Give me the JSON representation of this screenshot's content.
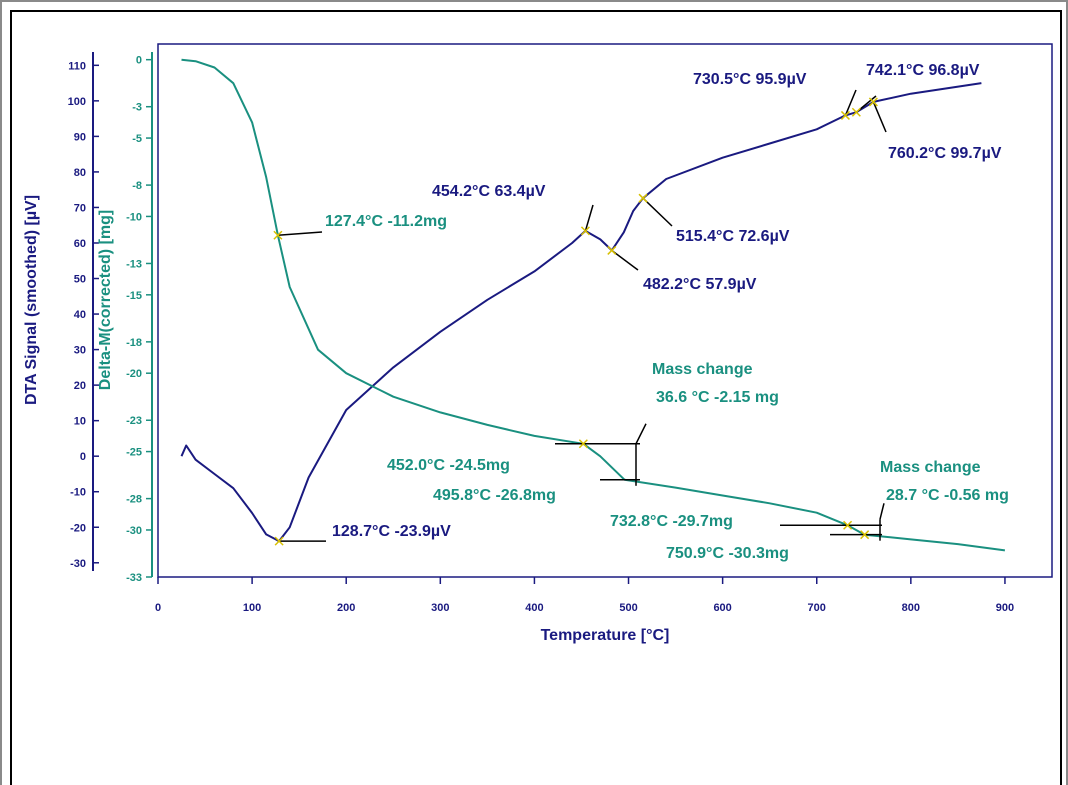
{
  "chart_data": {
    "type": "line",
    "title": "",
    "xlabel": "Temperature  [°C]",
    "ylabel_left": "DTA Signal (smoothed)  [µV]",
    "ylabel_right": "Delta-M(corrected)  [mg]",
    "x_ticks": [
      "0",
      "100",
      "200",
      "300",
      "400",
      "500",
      "600",
      "700",
      "800",
      "900"
    ],
    "y_ticks_dta": [
      "110",
      "100",
      "90",
      "80",
      "70",
      "60",
      "50",
      "40",
      "30",
      "20",
      "10",
      "0",
      "-10",
      "-20",
      "-30"
    ],
    "y_ticks_mass": [
      "0",
      "-3",
      "-5",
      "-8",
      "-10",
      "-13",
      "-15",
      "-18",
      "-20",
      "-23",
      "-25",
      "-28",
      "-30",
      "-33"
    ],
    "xlim": [
      0,
      950
    ],
    "ylim_dta": [
      -34,
      116
    ],
    "ylim_mass": [
      -33,
      1
    ],
    "colors": {
      "dta": "#1a1a80",
      "mass": "#1a9080"
    },
    "series": [
      {
        "name": "DTA Signal (smoothed)",
        "axis": "left",
        "x": [
          25,
          30,
          40,
          60,
          80,
          100,
          115,
          128.7,
          140,
          160,
          200,
          250,
          300,
          350,
          400,
          440,
          454.2,
          470,
          482.2,
          495,
          505,
          515.4,
          540,
          600,
          650,
          700,
          730.5,
          742.1,
          760.2,
          800,
          875
        ],
        "y": [
          0,
          3,
          -1,
          -5,
          -9,
          -16,
          -22,
          -23.9,
          -20,
          -6,
          13,
          25,
          35,
          44,
          52,
          60,
          63.4,
          61,
          57.9,
          63,
          69,
          72.6,
          78,
          84,
          88,
          92,
          95.9,
          96.8,
          99.7,
          102,
          105
        ]
      },
      {
        "name": "Delta-M(corrected)",
        "axis": "right",
        "x": [
          25,
          40,
          60,
          80,
          100,
          115,
          127.4,
          140,
          170,
          200,
          250,
          300,
          350,
          400,
          452,
          470,
          495.8,
          550,
          600,
          650,
          700,
          732.8,
          750.9,
          800,
          850,
          900
        ],
        "y": [
          0,
          -0.1,
          -0.5,
          -1.5,
          -4,
          -7.5,
          -11.2,
          -14.5,
          -18.5,
          -20,
          -21.5,
          -22.5,
          -23.3,
          -24,
          -24.5,
          -25.3,
          -26.8,
          -27.3,
          -27.8,
          -28.3,
          -28.9,
          -29.7,
          -30.3,
          -30.6,
          -30.9,
          -31.3
        ]
      }
    ],
    "annotations": [
      {
        "text": "127.4°C  -11.2mg",
        "series": "mass"
      },
      {
        "text": "454.2°C  63.4µV",
        "series": "dta"
      },
      {
        "text": "482.2°C  57.9µV",
        "series": "dta"
      },
      {
        "text": "515.4°C  72.6µV",
        "series": "dta"
      },
      {
        "text": "730.5°C  95.9µV",
        "series": "dta"
      },
      {
        "text": "742.1°C  96.8µV",
        "series": "dta"
      },
      {
        "text": "760.2°C  99.7µV",
        "series": "dta"
      },
      {
        "text": "Mass change",
        "series": "mass"
      },
      {
        "text": "36.6 °C  -2.15 mg",
        "series": "mass"
      },
      {
        "text": "452.0°C  -24.5mg",
        "series": "mass"
      },
      {
        "text": "495.8°C  -26.8mg",
        "series": "mass"
      },
      {
        "text": "Mass change",
        "series": "mass"
      },
      {
        "text": "28.7 °C  -0.56 mg",
        "series": "mass"
      },
      {
        "text": "732.8°C  -29.7mg",
        "series": "mass"
      },
      {
        "text": "750.9°C  -30.3mg",
        "series": "mass"
      },
      {
        "text": "128.7°C  -23.9µV",
        "series": "dta"
      }
    ]
  }
}
